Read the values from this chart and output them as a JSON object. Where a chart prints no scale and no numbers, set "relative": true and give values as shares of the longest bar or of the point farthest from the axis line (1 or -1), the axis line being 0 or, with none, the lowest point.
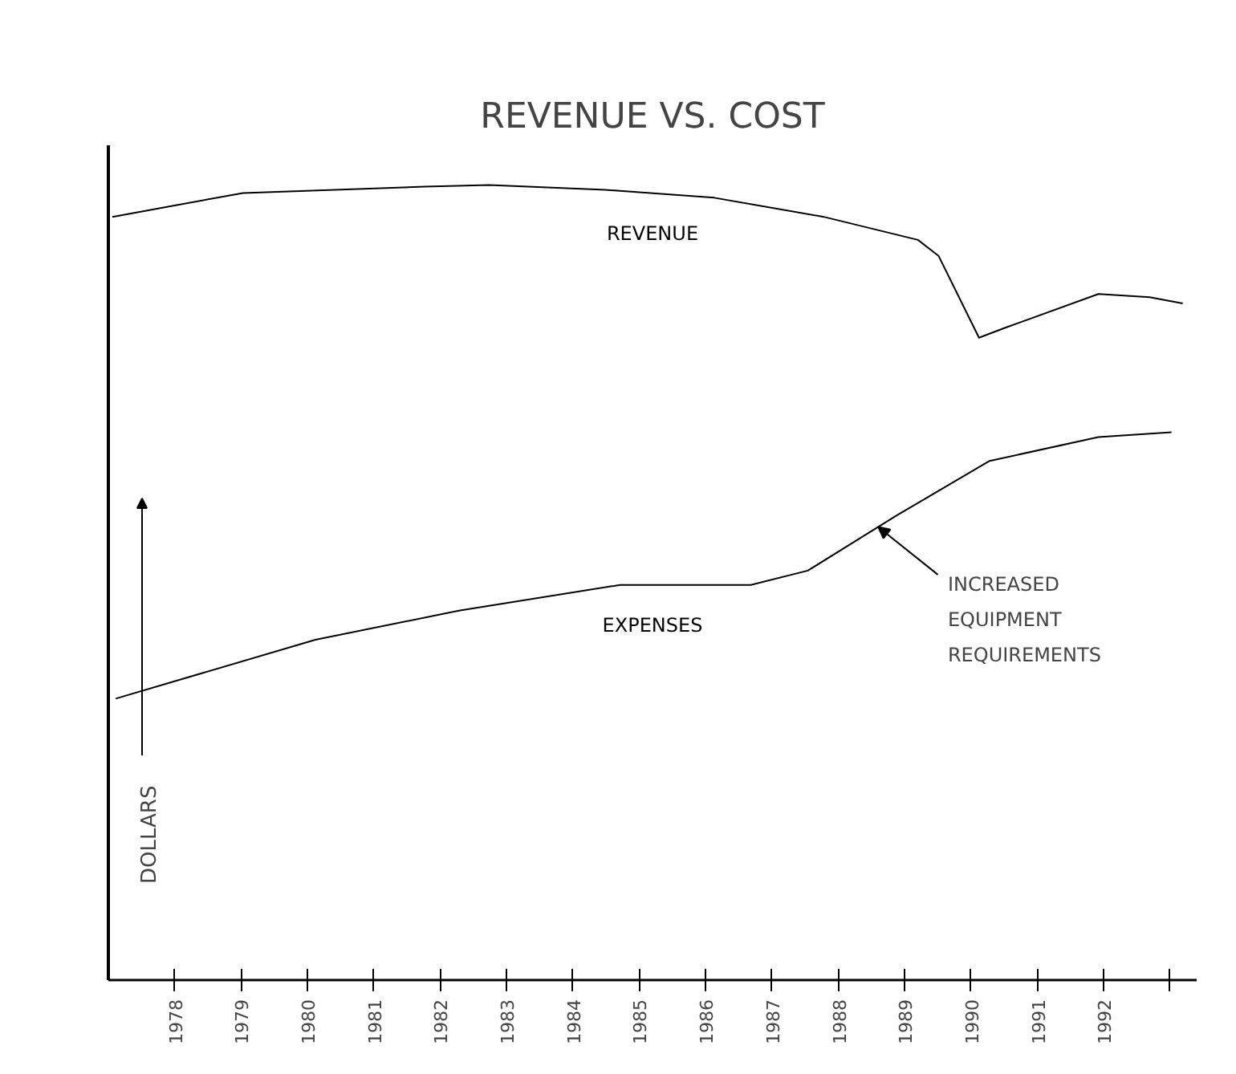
{
  "chart_data": {
    "type": "line",
    "title": "REVENUE VS. COST",
    "ylabel": "DOLLARS",
    "relative": true,
    "xlim": [
      1977,
      1993.4
    ],
    "xticks": [
      1978,
      1979,
      1980,
      1981,
      1982,
      1983,
      1984,
      1985,
      1986,
      1987,
      1988,
      1989,
      1990,
      1991,
      1992,
      {
        "value": 1993,
        "label": null
      }
    ],
    "series": [
      {
        "name": "REVENUE",
        "color": "#000000",
        "x": [
          1977.06,
          1979.03,
          1981.77,
          1982.74,
          1984.49,
          1986.13,
          1987.78,
          1989.2,
          1989.51,
          1990.12,
          1990.5,
          1991.92,
          1992.69,
          1993.19
        ],
        "values": [
          0.96,
          0.99,
          0.998,
          1,
          0.994,
          0.984,
          0.96,
          0.931,
          0.911,
          0.808,
          0.82,
          0.863,
          0.859,
          0.851
        ]
      },
      {
        "name": "EXPENSES",
        "color": "#000000",
        "x": [
          1977.11,
          1980.12,
          1982.3,
          1984.71,
          1986.68,
          1987.54,
          1988.87,
          1990.28,
          1991.92,
          1993.02
        ],
        "values": [
          0.354,
          0.428,
          0.465,
          0.497,
          0.497,
          0.515,
          0.584,
          0.653,
          0.683,
          0.689
        ]
      }
    ],
    "annotations": [
      {
        "text": "INCREASED\nEQUIPMENT\nREQUIREMENTS",
        "x": 1988.6,
        "y": 0.57
      }
    ],
    "grid": false,
    "marker": "none",
    "line_style": "solid"
  }
}
